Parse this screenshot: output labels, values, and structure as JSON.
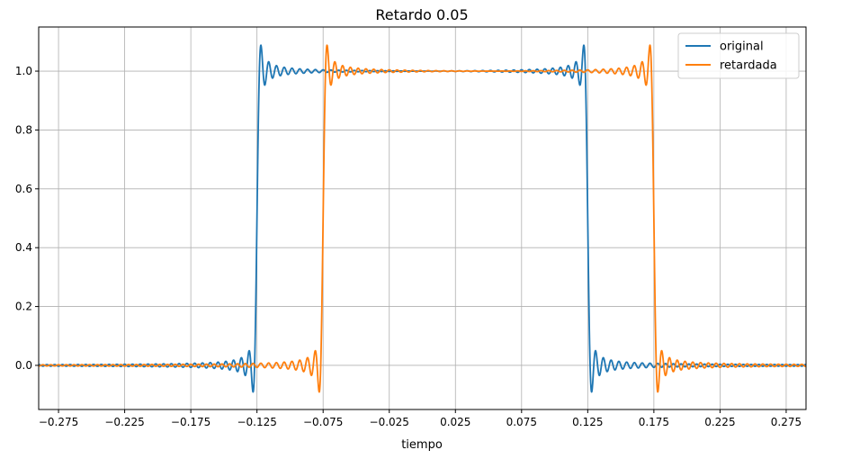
{
  "chart_data": {
    "type": "line",
    "title": "Retardo 0.05",
    "xlabel": "tiempo",
    "ylabel": "",
    "xlim": [
      -0.29,
      0.29
    ],
    "ylim": [
      -0.15,
      1.15
    ],
    "xticks": [
      -0.275,
      -0.225,
      -0.175,
      -0.125,
      -0.075,
      -0.025,
      0.025,
      0.075,
      0.125,
      0.175,
      0.225,
      0.275
    ],
    "xtick_labels": [
      "−0.275",
      "−0.225",
      "−0.175",
      "−0.125",
      "−0.075",
      "−0.025",
      "0.025",
      "0.075",
      "0.125",
      "0.175",
      "0.225",
      "0.275"
    ],
    "yticks": [
      0.0,
      0.2,
      0.4,
      0.6,
      0.8,
      1.0
    ],
    "ytick_labels": [
      "0.0",
      "0.2",
      "0.4",
      "0.6",
      "0.8",
      "1.0"
    ],
    "grid": true,
    "legend_position": "top-right",
    "series": [
      {
        "name": "original",
        "color": "#1f77b4",
        "pulse_start": -0.125,
        "pulse_end": 0.125,
        "low": 0.0,
        "high": 1.0,
        "overshoot_peak": 1.085,
        "undershoot_min": -0.085
      },
      {
        "name": "retardada",
        "color": "#ff7f0e",
        "pulse_start": -0.075,
        "pulse_end": 0.175,
        "low": 0.0,
        "high": 1.0,
        "overshoot_peak": 1.09,
        "undershoot_min": -0.085
      }
    ]
  }
}
